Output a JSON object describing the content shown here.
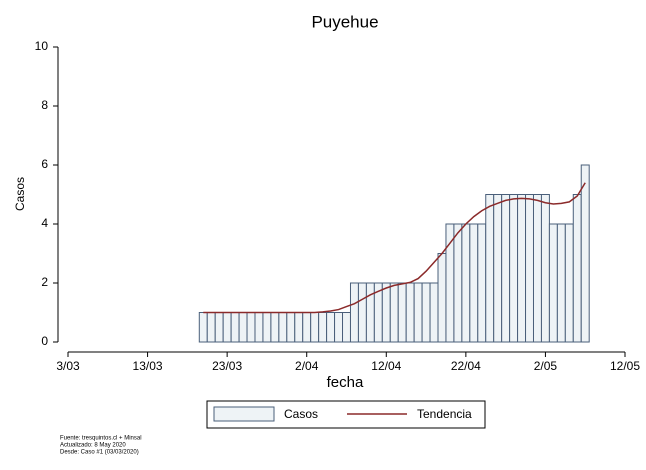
{
  "chart_data": {
    "type": "bar",
    "title": "Puyehue",
    "x_label": "fecha",
    "y_label": "Casos",
    "x": [
      "20/03",
      "21/03",
      "22/03",
      "23/03",
      "24/03",
      "25/03",
      "26/03",
      "27/03",
      "28/03",
      "29/03",
      "30/03",
      "31/03",
      "1/04",
      "2/04",
      "3/04",
      "4/04",
      "5/04",
      "6/04",
      "7/04",
      "8/04",
      "9/04",
      "10/04",
      "11/04",
      "12/04",
      "13/04",
      "14/04",
      "15/04",
      "16/04",
      "17/04",
      "18/04",
      "19/04",
      "20/04",
      "21/04",
      "22/04",
      "23/04",
      "24/04",
      "25/04",
      "26/04",
      "27/04",
      "28/04",
      "29/04",
      "30/04",
      "1/05",
      "2/05",
      "3/05",
      "4/05",
      "5/05",
      "6/05",
      "7/05"
    ],
    "series": [
      {
        "name": "Casos",
        "type": "bar",
        "color": "#eef3f6",
        "edge_color": "#4a5f7a",
        "values": [
          1,
          1,
          1,
          1,
          1,
          1,
          1,
          1,
          1,
          1,
          1,
          1,
          1,
          1,
          1,
          1,
          1,
          1,
          1,
          2,
          2,
          2,
          2,
          2,
          2,
          2,
          2,
          2,
          2,
          2,
          3,
          4,
          4,
          4,
          4,
          4,
          5,
          5,
          5,
          5,
          5,
          5,
          5,
          5,
          4,
          4,
          4,
          5,
          6
        ]
      },
      {
        "name": "Tendencia",
        "type": "line",
        "color": "#8b2a2a",
        "values": [
          1,
          1,
          1,
          1,
          1,
          1,
          1,
          1,
          1,
          1,
          1,
          1,
          1,
          1,
          1,
          1.02,
          1.05,
          1.1,
          1.2,
          1.3,
          1.45,
          1.6,
          1.72,
          1.83,
          1.92,
          1.97,
          2.02,
          2.15,
          2.4,
          2.7,
          3,
          3.35,
          3.7,
          4,
          4.25,
          4.45,
          4.6,
          4.7,
          4.8,
          4.85,
          4.87,
          4.85,
          4.8,
          4.72,
          4.68,
          4.7,
          4.75,
          4.95,
          5.4
        ]
      }
    ],
    "xlim": [
      "3/03",
      "12/05"
    ],
    "xticks": [
      "3/03",
      "13/03",
      "23/03",
      "2/04",
      "12/04",
      "22/04",
      "2/05",
      "12/05"
    ],
    "ylim": [
      0,
      10
    ],
    "yticks": [
      0,
      2,
      4,
      6,
      8,
      10
    ],
    "footnotes": [
      "Fuente: tresquintos.cl + Minsal",
      "Actualizado: 8 May 2020",
      "Desde: Caso #1  (03/03/2020)"
    ]
  }
}
